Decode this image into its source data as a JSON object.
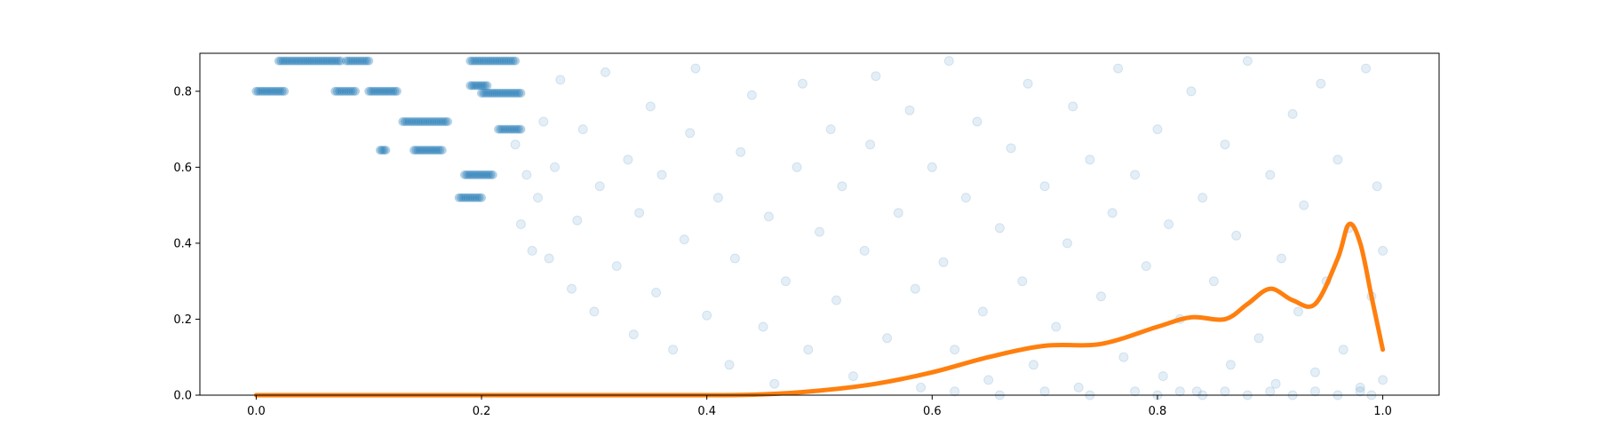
{
  "chart_data": {
    "type": "scatter",
    "title": "",
    "xlabel": "",
    "ylabel": "",
    "xlim": [
      -0.05,
      1.05
    ],
    "ylim": [
      0.0,
      0.9
    ],
    "grid": false,
    "legend": "none",
    "x_ticks": [
      "0.0",
      "0.2",
      "0.4",
      "0.6",
      "0.8",
      "1.0"
    ],
    "y_ticks": [
      "0.0",
      "0.2",
      "0.4",
      "0.6",
      "0.8"
    ],
    "series": [
      {
        "kind": "scatter",
        "color": "#1f77b4",
        "alpha": 0.12,
        "clusters": [
          {
            "x_range": [
              0.0,
              0.025
            ],
            "y": 0.8
          },
          {
            "x_range": [
              0.07,
              0.088
            ],
            "y": 0.8
          },
          {
            "x_range": [
              0.1,
              0.125
            ],
            "y": 0.8
          },
          {
            "x_range": [
              0.02,
              0.075
            ],
            "y": 0.88
          },
          {
            "x_range": [
              0.08,
              0.1
            ],
            "y": 0.88
          },
          {
            "x_range": [
              0.13,
              0.17
            ],
            "y": 0.72
          },
          {
            "x_range": [
              0.11,
              0.115
            ],
            "y": 0.645
          },
          {
            "x_range": [
              0.14,
              0.165
            ],
            "y": 0.645
          },
          {
            "x_range": [
              0.185,
              0.21
            ],
            "y": 0.58
          },
          {
            "x_range": [
              0.18,
              0.2
            ],
            "y": 0.52
          },
          {
            "x_range": [
              0.19,
              0.205
            ],
            "y": 0.815
          },
          {
            "x_range": [
              0.19,
              0.23
            ],
            "y": 0.88
          },
          {
            "x_range": [
              0.2,
              0.235
            ],
            "y": 0.795
          },
          {
            "x_range": [
              0.215,
              0.235
            ],
            "y": 0.7
          }
        ],
        "points": [
          [
            0.23,
            0.66
          ],
          [
            0.235,
            0.45
          ],
          [
            0.24,
            0.58
          ],
          [
            0.245,
            0.38
          ],
          [
            0.25,
            0.52
          ],
          [
            0.255,
            0.72
          ],
          [
            0.26,
            0.36
          ],
          [
            0.265,
            0.6
          ],
          [
            0.27,
            0.83
          ],
          [
            0.28,
            0.28
          ],
          [
            0.285,
            0.46
          ],
          [
            0.29,
            0.7
          ],
          [
            0.3,
            0.22
          ],
          [
            0.305,
            0.55
          ],
          [
            0.31,
            0.85
          ],
          [
            0.32,
            0.34
          ],
          [
            0.33,
            0.62
          ],
          [
            0.335,
            0.16
          ],
          [
            0.34,
            0.48
          ],
          [
            0.35,
            0.76
          ],
          [
            0.355,
            0.27
          ],
          [
            0.36,
            0.58
          ],
          [
            0.37,
            0.12
          ],
          [
            0.38,
            0.41
          ],
          [
            0.385,
            0.69
          ],
          [
            0.39,
            0.86
          ],
          [
            0.4,
            0.21
          ],
          [
            0.41,
            0.52
          ],
          [
            0.42,
            0.08
          ],
          [
            0.425,
            0.36
          ],
          [
            0.43,
            0.64
          ],
          [
            0.44,
            0.79
          ],
          [
            0.45,
            0.18
          ],
          [
            0.455,
            0.47
          ],
          [
            0.46,
            0.03
          ],
          [
            0.47,
            0.3
          ],
          [
            0.48,
            0.6
          ],
          [
            0.485,
            0.82
          ],
          [
            0.49,
            0.12
          ],
          [
            0.5,
            0.43
          ],
          [
            0.51,
            0.7
          ],
          [
            0.515,
            0.25
          ],
          [
            0.52,
            0.55
          ],
          [
            0.53,
            0.05
          ],
          [
            0.54,
            0.38
          ],
          [
            0.545,
            0.66
          ],
          [
            0.55,
            0.84
          ],
          [
            0.56,
            0.15
          ],
          [
            0.57,
            0.48
          ],
          [
            0.58,
            0.75
          ],
          [
            0.585,
            0.28
          ],
          [
            0.59,
            0.02
          ],
          [
            0.6,
            0.6
          ],
          [
            0.61,
            0.35
          ],
          [
            0.615,
            0.88
          ],
          [
            0.62,
            0.12
          ],
          [
            0.63,
            0.52
          ],
          [
            0.64,
            0.72
          ],
          [
            0.645,
            0.22
          ],
          [
            0.65,
            0.04
          ],
          [
            0.66,
            0.44
          ],
          [
            0.67,
            0.65
          ],
          [
            0.68,
            0.3
          ],
          [
            0.685,
            0.82
          ],
          [
            0.69,
            0.08
          ],
          [
            0.7,
            0.55
          ],
          [
            0.71,
            0.18
          ],
          [
            0.72,
            0.4
          ],
          [
            0.725,
            0.76
          ],
          [
            0.73,
            0.02
          ],
          [
            0.74,
            0.62
          ],
          [
            0.75,
            0.26
          ],
          [
            0.76,
            0.48
          ],
          [
            0.765,
            0.86
          ],
          [
            0.77,
            0.1
          ],
          [
            0.78,
            0.58
          ],
          [
            0.79,
            0.34
          ],
          [
            0.8,
            0.7
          ],
          [
            0.805,
            0.05
          ],
          [
            0.81,
            0.45
          ],
          [
            0.82,
            0.2
          ],
          [
            0.83,
            0.8
          ],
          [
            0.835,
            0.01
          ],
          [
            0.84,
            0.52
          ],
          [
            0.85,
            0.3
          ],
          [
            0.86,
            0.66
          ],
          [
            0.865,
            0.08
          ],
          [
            0.87,
            0.42
          ],
          [
            0.88,
            0.88
          ],
          [
            0.89,
            0.15
          ],
          [
            0.9,
            0.58
          ],
          [
            0.905,
            0.03
          ],
          [
            0.91,
            0.36
          ],
          [
            0.92,
            0.74
          ],
          [
            0.925,
            0.22
          ],
          [
            0.93,
            0.5
          ],
          [
            0.94,
            0.06
          ],
          [
            0.945,
            0.82
          ],
          [
            0.95,
            0.3
          ],
          [
            0.96,
            0.62
          ],
          [
            0.965,
            0.12
          ],
          [
            0.97,
            0.44
          ],
          [
            0.98,
            0.02
          ],
          [
            0.985,
            0.86
          ],
          [
            0.99,
            0.26
          ],
          [
            0.995,
            0.55
          ],
          [
            1.0,
            0.04
          ],
          [
            1.0,
            0.38
          ],
          [
            0.62,
            0.01
          ],
          [
            0.66,
            0.0
          ],
          [
            0.7,
            0.01
          ],
          [
            0.74,
            0.0
          ],
          [
            0.78,
            0.01
          ],
          [
            0.8,
            0.0
          ],
          [
            0.82,
            0.01
          ],
          [
            0.84,
            0.0
          ],
          [
            0.86,
            0.01
          ],
          [
            0.88,
            0.0
          ],
          [
            0.9,
            0.01
          ],
          [
            0.92,
            0.0
          ],
          [
            0.94,
            0.01
          ],
          [
            0.96,
            0.0
          ],
          [
            0.98,
            0.01
          ],
          [
            0.99,
            0.0
          ]
        ]
      },
      {
        "kind": "line",
        "color": "#ff7f0e",
        "x": [
          0.0,
          0.1,
          0.2,
          0.3,
          0.4,
          0.45,
          0.5,
          0.55,
          0.6,
          0.65,
          0.7,
          0.75,
          0.8,
          0.83,
          0.86,
          0.88,
          0.9,
          0.92,
          0.94,
          0.96,
          0.97,
          0.98,
          0.99,
          1.0
        ],
        "y": [
          0.0,
          0.0,
          0.0,
          0.0,
          0.0,
          0.002,
          0.012,
          0.03,
          0.06,
          0.1,
          0.13,
          0.135,
          0.18,
          0.205,
          0.2,
          0.24,
          0.28,
          0.25,
          0.24,
          0.36,
          0.45,
          0.4,
          0.26,
          0.12
        ]
      }
    ]
  }
}
